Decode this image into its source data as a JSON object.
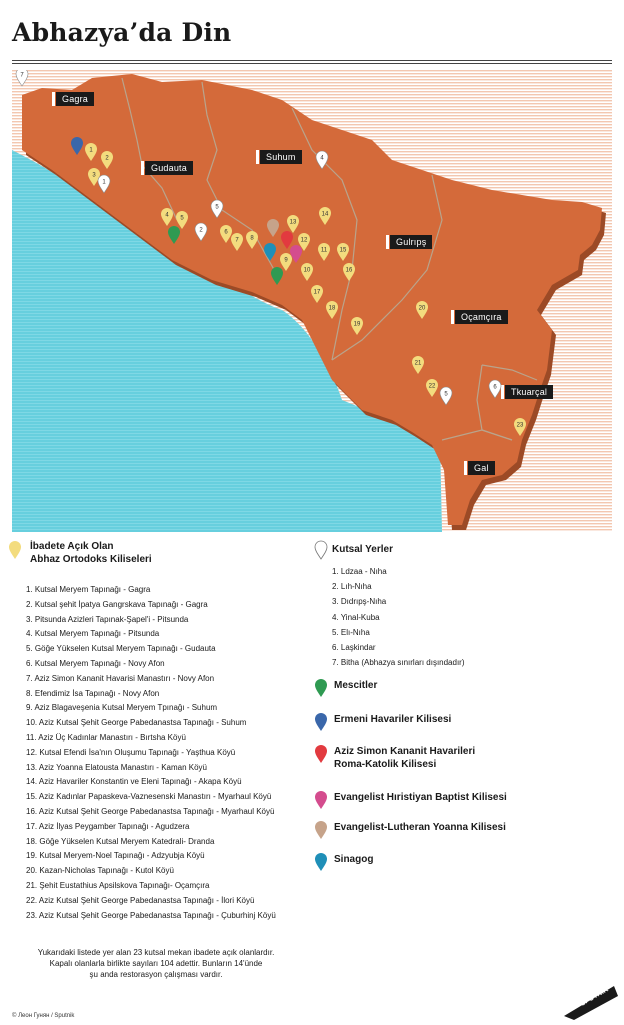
{
  "title": "Abhazya’da Din",
  "colors": {
    "land": "#d46a3a",
    "land_shadow": "#9c4a26",
    "sea": "#67cfde",
    "stripes": "#f3c7b0",
    "orthodox": "#f3dc7e",
    "sacred": "#ffffff",
    "mosque": "#2f9a52",
    "armenian": "#3a67aa",
    "catholic": "#e23a3f",
    "baptist": "#d44c8e",
    "lutheran": "#c6a38a",
    "synagogue": "#1f8fb8"
  },
  "map": {
    "regions": [
      "Gagra",
      "Gudauta",
      "Suhum",
      "Gulrıpş",
      "Oçamçıra",
      "Tkuarçal",
      "Gal"
    ]
  },
  "legend": {
    "orthodox_title": "İbadete Açık Olan\nAbhaz Ortodoks Kiliseleri",
    "orthodox_items": [
      "1. Kutsal Meryem Tapınağı - Gagra",
      "2. Kutsal şehit İpatya Gangrskava Tapınağı - Gagra",
      "3. Pitsunda Azizleri Tapınak-Şapel'i - Pitsunda",
      "4. Kutsal Meryem Tapınağı - Pitsunda",
      "5. Göğe Yükselen Kutsal Meryem Tapınağı - Gudauta",
      "6. Kutsal Meryem Tapınağı - Novy Afon",
      "7. Aziz Simon Kananit Havarisi Manastırı - Novy Afon",
      "8. Efendimiz İsa Tapınağı - Novy Afon",
      "9. Aziz Blagaveşenia Kutsal Meryem Tpınağı -  Suhum",
      "10. Aziz Kutsal Şehit George Pabedanastsa Tapınağı - Suhum",
      "11. Aziz Üç Kadınlar Manastırı - Bırtsha Köyü",
      "12. Kutsal Efendi İsa'nın Oluşumu Tapınağı - Yaşthua Köyü",
      "13. Aziz Yoanna Elatousta Manastırı - Kaman Köyü",
      "14. Aziz Havariler Konstantin ve Eleni Tapınağı - Akapa Köyü",
      "15. Aziz Kadınlar Papaskeva-Vaznesenski Manastırı - Myarhaul Köyü",
      "16. Aziz Kutsal Şehit George Pabedanastsa Tapınağı - Myarhaul Köyü",
      "17. Aziz İlyas Peygamber Tapınağı - Agudzera",
      "18. Göğe Yükselen Kutsal Meryem Katedrali- Dranda",
      "19. Kutsal Meryem-Noel Tapınağı - Adzyubja Köyü",
      "20. Kazan-Nicholas Tapınağı - Kutol Köyü",
      "21. Şehit Eustathius Apsilskova Tapınağı- Oçamçıra",
      "22. Aziz Kutsal Şehit George Pabedanastsa Tapınağı - İlori Köyü",
      "23. Aziz Kutsal Şehit George Pabedanastsa Tapınağı - Çuburhinj Köyü"
    ],
    "sacred_title": "Kutsal Yerler",
    "sacred_items": [
      "1. Ldzaa - Nıha",
      "2. Lıh-Nıha",
      "3. Dıdrıpş-Nıha",
      "4. Yinal-Kuba",
      "5. Elı-Nıha",
      "6. Laşkindar",
      "7. Bitha (Abhazya sınırları dışındadır)"
    ],
    "categories": [
      {
        "label": "Mescitler",
        "color_key": "mosque"
      },
      {
        "label": "Ermeni Havariler Kilisesi",
        "color_key": "armenian"
      },
      {
        "label": "Aziz Simon Kananit Havarileri\nRoma-Katolik Kilisesi",
        "color_key": "catholic"
      },
      {
        "label": "Evangelist Hıristiyan Baptist Kilisesi",
        "color_key": "baptist"
      },
      {
        "label": "Evangelist-Lutheran Yoanna Kilisesi",
        "color_key": "lutheran"
      },
      {
        "label": "Sinagog",
        "color_key": "synagogue"
      }
    ]
  },
  "footnote": "Yukarıdaki listede yer alan 23 kutsal mekan ibadete açık olanlardır.\nKapalı olanlarla birlikte sayıları 104 adettir. Bunların 14'ünde\nşu anda restorasyon çalışması vardır.",
  "credit": "© Леон Гунян / Sputnik",
  "logo_text": "SPUTNIK"
}
